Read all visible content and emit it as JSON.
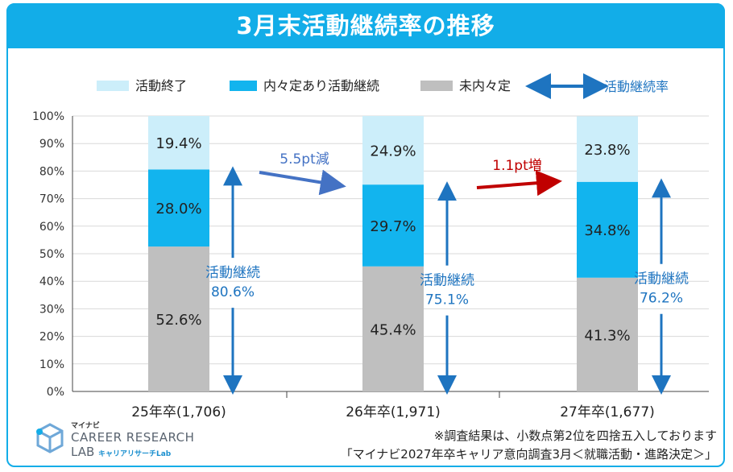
{
  "title": "3月末活動継続率の推移",
  "legend": {
    "items": [
      {
        "label": "活動終了",
        "color": "#CCEEFA"
      },
      {
        "label": "内々定あり活動継続",
        "color": "#12B4EE"
      },
      {
        "label": "未内々定",
        "color": "#BFBFBF"
      }
    ],
    "arrow_label": "活動継続率"
  },
  "chart_data": {
    "type": "bar",
    "stacked": true,
    "title": "3月末活動継続率の推移",
    "categories": [
      "25年卒(1,706)",
      "26年卒(1,971)",
      "27年卒(1,677)"
    ],
    "series": [
      {
        "name": "未内々定",
        "values": [
          52.6,
          45.4,
          41.3
        ],
        "labels": [
          "52.6%",
          "45.4%",
          "41.3%"
        ],
        "color": "#BFBFBF"
      },
      {
        "name": "内々定あり活動継続",
        "values": [
          28.0,
          29.7,
          34.8
        ],
        "labels": [
          "28.0%",
          "29.7%",
          "34.8%"
        ],
        "color": "#12B4EE"
      },
      {
        "name": "活動終了",
        "values": [
          19.4,
          24.9,
          23.8
        ],
        "labels": [
          "19.4%",
          "24.9%",
          "23.8%"
        ],
        "color": "#CCEEFA"
      }
    ],
    "continuation": {
      "label": "活動継続",
      "values": [
        80.6,
        75.1,
        76.2
      ],
      "labels": [
        "80.6%",
        "75.1%",
        "76.2%"
      ],
      "color": "#1E74C0"
    },
    "changes": [
      {
        "label": "5.5pt減",
        "color": "#4472C4"
      },
      {
        "label": "1.1pt増",
        "color": "#C00000"
      }
    ],
    "yticks": [
      "0%",
      "10%",
      "20%",
      "30%",
      "40%",
      "50%",
      "60%",
      "70%",
      "80%",
      "90%",
      "100%"
    ],
    "ylim": [
      0,
      100
    ],
    "xlabel": "",
    "ylabel": ""
  },
  "notes": {
    "line1": "※調査結果は、小数点第2位を四捨五入しております",
    "line2": "「マイナビ2027年卒キャリア意向調査3月＜就職活動・進路決定＞」"
  },
  "logo": {
    "small": "マイナビ",
    "main": "CAREER RESEARCH",
    "sub": "LAB",
    "sub2": "キャリアリサーチLab"
  }
}
